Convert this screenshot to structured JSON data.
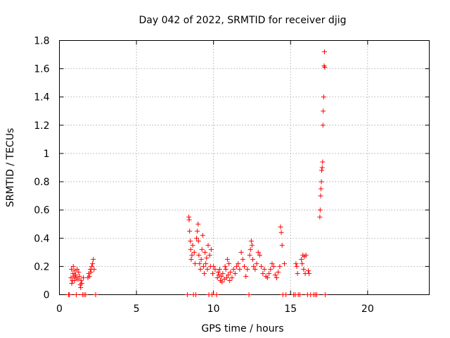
{
  "chart_data": {
    "type": "scatter",
    "title": "Day 042 of 2022, SRMTID for receiver djig",
    "xlabel": "GPS time / hours",
    "ylabel": "SRMTID / TECUs",
    "xlim": [
      0,
      24
    ],
    "ylim": [
      0,
      1.8
    ],
    "xticks": [
      "0",
      "5",
      "10",
      "15",
      "20"
    ],
    "yticks": [
      "0",
      "0.2",
      "0.4",
      "0.6",
      "0.8",
      "1",
      "1.2",
      "1.4",
      "1.6",
      "1.8"
    ],
    "grid": true,
    "marker": "+",
    "color": "#ff0000",
    "series": [
      {
        "name": "SRMTID",
        "points": [
          [
            0.6,
            0
          ],
          [
            0.65,
            0
          ],
          [
            0.75,
            0.12
          ],
          [
            0.78,
            0.18
          ],
          [
            0.8,
            0.08
          ],
          [
            0.85,
            0.1
          ],
          [
            0.88,
            0.15
          ],
          [
            0.9,
            0.2
          ],
          [
            0.95,
            0.13
          ],
          [
            0.98,
            0.1
          ],
          [
            1.0,
            0.17
          ],
          [
            1.05,
            0.14
          ],
          [
            1.08,
            0.12
          ],
          [
            1.1,
            0
          ],
          [
            1.15,
            0.18
          ],
          [
            1.2,
            0.11
          ],
          [
            1.25,
            0.16
          ],
          [
            1.3,
            0.13
          ],
          [
            1.35,
            0.07
          ],
          [
            1.38,
            0.05
          ],
          [
            1.4,
            0.1
          ],
          [
            1.45,
            0.08
          ],
          [
            1.5,
            0
          ],
          [
            1.55,
            0.12
          ],
          [
            1.6,
            0
          ],
          [
            1.7,
            0
          ],
          [
            1.85,
            0.12
          ],
          [
            1.9,
            0.15
          ],
          [
            1.95,
            0.13
          ],
          [
            2.0,
            0.18
          ],
          [
            2.05,
            0.16
          ],
          [
            2.1,
            0.2
          ],
          [
            2.15,
            0.22
          ],
          [
            2.2,
            0.25
          ],
          [
            2.25,
            0.18
          ],
          [
            2.35,
            0
          ],
          [
            8.3,
            0
          ],
          [
            8.4,
            0.55
          ],
          [
            8.42,
            0.53
          ],
          [
            8.45,
            0.45
          ],
          [
            8.5,
            0.38
          ],
          [
            8.52,
            0.32
          ],
          [
            8.55,
            0.25
          ],
          [
            8.6,
            0.28
          ],
          [
            8.65,
            0.35
          ],
          [
            8.7,
            0
          ],
          [
            8.75,
            0.3
          ],
          [
            8.8,
            0.22
          ],
          [
            8.85,
            0
          ],
          [
            8.9,
            0.4
          ],
          [
            8.95,
            0.45
          ],
          [
            9.0,
            0.5
          ],
          [
            9.02,
            0.38
          ],
          [
            9.05,
            0.28
          ],
          [
            9.1,
            0.22
          ],
          [
            9.15,
            0.18
          ],
          [
            9.2,
            0.25
          ],
          [
            9.25,
            0.32
          ],
          [
            9.3,
            0.42
          ],
          [
            9.35,
            0.2
          ],
          [
            9.4,
            0.15
          ],
          [
            9.45,
            0.3
          ],
          [
            9.5,
            0.22
          ],
          [
            9.55,
            0.26
          ],
          [
            9.6,
            0.18
          ],
          [
            9.65,
            0.35
          ],
          [
            9.7,
            0
          ],
          [
            9.75,
            0.28
          ],
          [
            9.8,
            0.2
          ],
          [
            9.85,
            0.32
          ],
          [
            9.9,
            0
          ],
          [
            9.95,
            0.15
          ],
          [
            10.0,
            0.2
          ],
          [
            10.1,
            0.18
          ],
          [
            10.2,
            0
          ],
          [
            10.25,
            0.12
          ],
          [
            10.3,
            0.16
          ],
          [
            10.35,
            0.14
          ],
          [
            10.4,
            0.18
          ],
          [
            10.45,
            0.1
          ],
          [
            10.5,
            0.13
          ],
          [
            10.55,
            0.09
          ],
          [
            10.6,
            0.15
          ],
          [
            10.7,
            0.11
          ],
          [
            10.75,
            0.2
          ],
          [
            10.8,
            0.18
          ],
          [
            10.85,
            0.12
          ],
          [
            10.9,
            0.25
          ],
          [
            10.95,
            0.14
          ],
          [
            11.0,
            0.22
          ],
          [
            11.05,
            0.1
          ],
          [
            11.1,
            0.16
          ],
          [
            11.2,
            0.12
          ],
          [
            11.3,
            0.18
          ],
          [
            11.4,
            0.15
          ],
          [
            11.5,
            0.2
          ],
          [
            11.6,
            0.22
          ],
          [
            11.7,
            0.18
          ],
          [
            11.8,
            0.3
          ],
          [
            11.9,
            0.25
          ],
          [
            12.0,
            0.2
          ],
          [
            12.1,
            0.13
          ],
          [
            12.2,
            0.18
          ],
          [
            12.3,
            0
          ],
          [
            12.35,
            0.28
          ],
          [
            12.4,
            0.32
          ],
          [
            12.45,
            0.38
          ],
          [
            12.5,
            0.35
          ],
          [
            12.55,
            0.25
          ],
          [
            12.6,
            0.2
          ],
          [
            12.7,
            0.18
          ],
          [
            12.8,
            0.22
          ],
          [
            12.9,
            0.3
          ],
          [
            13.0,
            0.28
          ],
          [
            13.1,
            0.2
          ],
          [
            13.2,
            0.15
          ],
          [
            13.3,
            0.18
          ],
          [
            13.4,
            0.13
          ],
          [
            13.5,
            0.12
          ],
          [
            13.6,
            0.15
          ],
          [
            13.7,
            0.18
          ],
          [
            13.8,
            0.22
          ],
          [
            13.9,
            0.2
          ],
          [
            14.0,
            0.14
          ],
          [
            14.1,
            0.12
          ],
          [
            14.2,
            0.16
          ],
          [
            14.3,
            0.2
          ],
          [
            14.35,
            0.48
          ],
          [
            14.4,
            0.44
          ],
          [
            14.45,
            0.35
          ],
          [
            14.5,
            0
          ],
          [
            14.6,
            0.22
          ],
          [
            14.7,
            0
          ],
          [
            15.2,
            0
          ],
          [
            15.3,
            0
          ],
          [
            15.35,
            0.22
          ],
          [
            15.4,
            0.2
          ],
          [
            15.45,
            0.15
          ],
          [
            15.5,
            0
          ],
          [
            15.6,
            0
          ],
          [
            15.7,
            0.25
          ],
          [
            15.75,
            0.22
          ],
          [
            15.8,
            0.28
          ],
          [
            15.85,
            0.18
          ],
          [
            15.9,
            0.27
          ],
          [
            15.95,
            0.15
          ],
          [
            16.0,
            0.28
          ],
          [
            16.1,
            0
          ],
          [
            16.15,
            0.17
          ],
          [
            16.2,
            0.15
          ],
          [
            16.3,
            0
          ],
          [
            16.5,
            0
          ],
          [
            16.6,
            0
          ],
          [
            16.7,
            0
          ],
          [
            16.9,
            0.55
          ],
          [
            16.92,
            0.6
          ],
          [
            16.95,
            0.7
          ],
          [
            16.97,
            0.75
          ],
          [
            17.0,
            0.8
          ],
          [
            17.02,
            0.88
          ],
          [
            17.05,
            0.9
          ],
          [
            17.08,
            0.94
          ],
          [
            17.1,
            1.2
          ],
          [
            17.12,
            1.3
          ],
          [
            17.15,
            1.4
          ],
          [
            17.18,
            1.62
          ],
          [
            17.2,
            1.72
          ],
          [
            17.22,
            1.61
          ],
          [
            17.25,
            0
          ]
        ]
      }
    ]
  }
}
